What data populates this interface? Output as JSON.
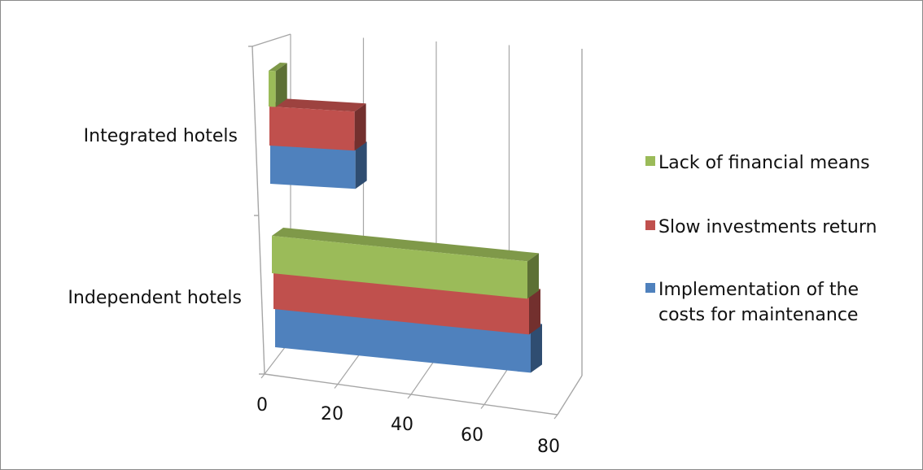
{
  "chart_data": {
    "type": "bar",
    "orientation": "horizontal",
    "style": "3d-stacked",
    "categories": [
      "Independent hotels",
      "Integrated hotels"
    ],
    "series": [
      {
        "name": "Implementation of the costs for maintenance",
        "values": [
          72,
          24
        ],
        "color": "#4f81bd"
      },
      {
        "name": "Slow investments return",
        "values": [
          72,
          24
        ],
        "color": "#c0504d"
      },
      {
        "name": "Lack of financial means",
        "values": [
          72,
          2
        ],
        "color": "#9bbb59"
      }
    ],
    "xlim": [
      0,
      80
    ],
    "xticks": [
      "0",
      "20",
      "40",
      "60",
      "80"
    ],
    "grid": true,
    "legend": "right"
  }
}
